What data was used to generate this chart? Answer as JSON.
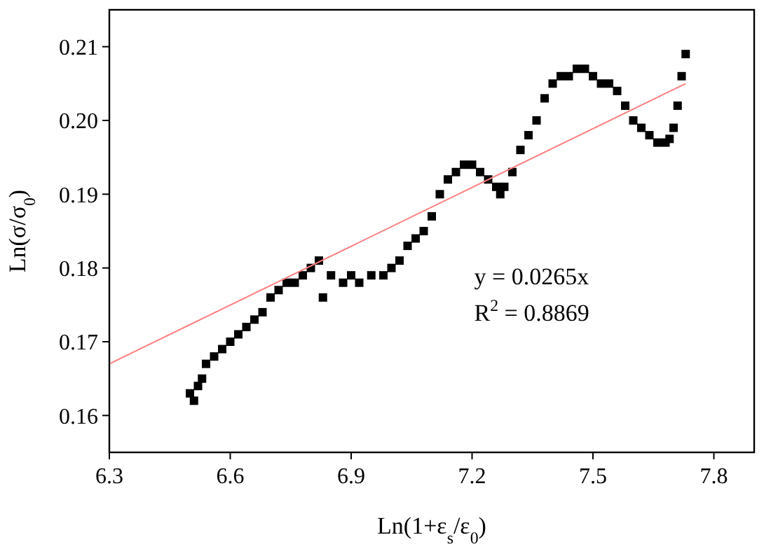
{
  "chart_data": {
    "type": "scatter",
    "xlabel": "Ln(1+ε$_{s}$/ε$_{0}$)",
    "ylabel": "Ln(σ/σ$_{0}$)",
    "xlim": [
      6.3,
      7.9
    ],
    "ylim": [
      0.155,
      0.215
    ],
    "xticks": [
      6.3,
      6.6,
      6.9,
      7.2,
      7.5,
      7.8
    ],
    "yticks": [
      0.16,
      0.17,
      0.18,
      0.19,
      {
        "value": 0.2,
        "label": "0.20"
      },
      0.21
    ],
    "grid": false,
    "marker": "square",
    "series": [
      {
        "color": "#000000",
        "x": [
          6.5,
          6.51,
          6.52,
          6.53,
          6.54,
          6.56,
          6.58,
          6.6,
          6.62,
          6.64,
          6.66,
          6.68,
          6.7,
          6.72,
          6.74,
          6.76,
          6.78,
          6.8,
          6.82,
          6.83,
          6.85,
          6.88,
          6.9,
          6.92,
          6.95,
          6.98,
          7.0,
          7.02,
          7.04,
          7.06,
          7.08,
          7.1,
          7.12,
          7.14,
          7.16,
          7.18,
          7.2,
          7.22,
          7.24,
          7.26,
          7.27,
          7.28,
          7.3,
          7.32,
          7.34,
          7.36,
          7.38,
          7.4,
          7.42,
          7.44,
          7.46,
          7.48,
          7.5,
          7.52,
          7.54,
          7.56,
          7.58,
          7.6,
          7.62,
          7.64,
          7.66,
          7.68,
          7.69,
          7.7,
          7.71,
          7.72,
          7.73
        ],
        "values": [
          0.163,
          0.162,
          0.164,
          0.165,
          0.167,
          0.168,
          0.169,
          0.17,
          0.171,
          0.172,
          0.173,
          0.174,
          0.176,
          0.177,
          0.178,
          0.178,
          0.179,
          0.18,
          0.181,
          0.176,
          0.179,
          0.178,
          0.179,
          0.178,
          0.179,
          0.179,
          0.18,
          0.181,
          0.183,
          0.184,
          0.185,
          0.187,
          0.19,
          0.192,
          0.193,
          0.194,
          0.194,
          0.193,
          0.192,
          0.191,
          0.19,
          0.191,
          0.193,
          0.196,
          0.198,
          0.2,
          0.203,
          0.205,
          0.206,
          0.206,
          0.207,
          0.207,
          0.206,
          0.205,
          0.205,
          0.204,
          0.202,
          0.2,
          0.199,
          0.198,
          0.197,
          0.197,
          0.1975,
          0.199,
          0.202,
          0.206,
          0.209
        ]
      },
      {
        "type": "line",
        "color": "#ff7f7f",
        "marker": "none",
        "x": [
          6.3,
          7.73
        ],
        "values": [
          0.167,
          0.205
        ]
      }
    ],
    "annotations": [
      "y = 0.0265x",
      "R$^{2}$ = 0.8869"
    ]
  }
}
